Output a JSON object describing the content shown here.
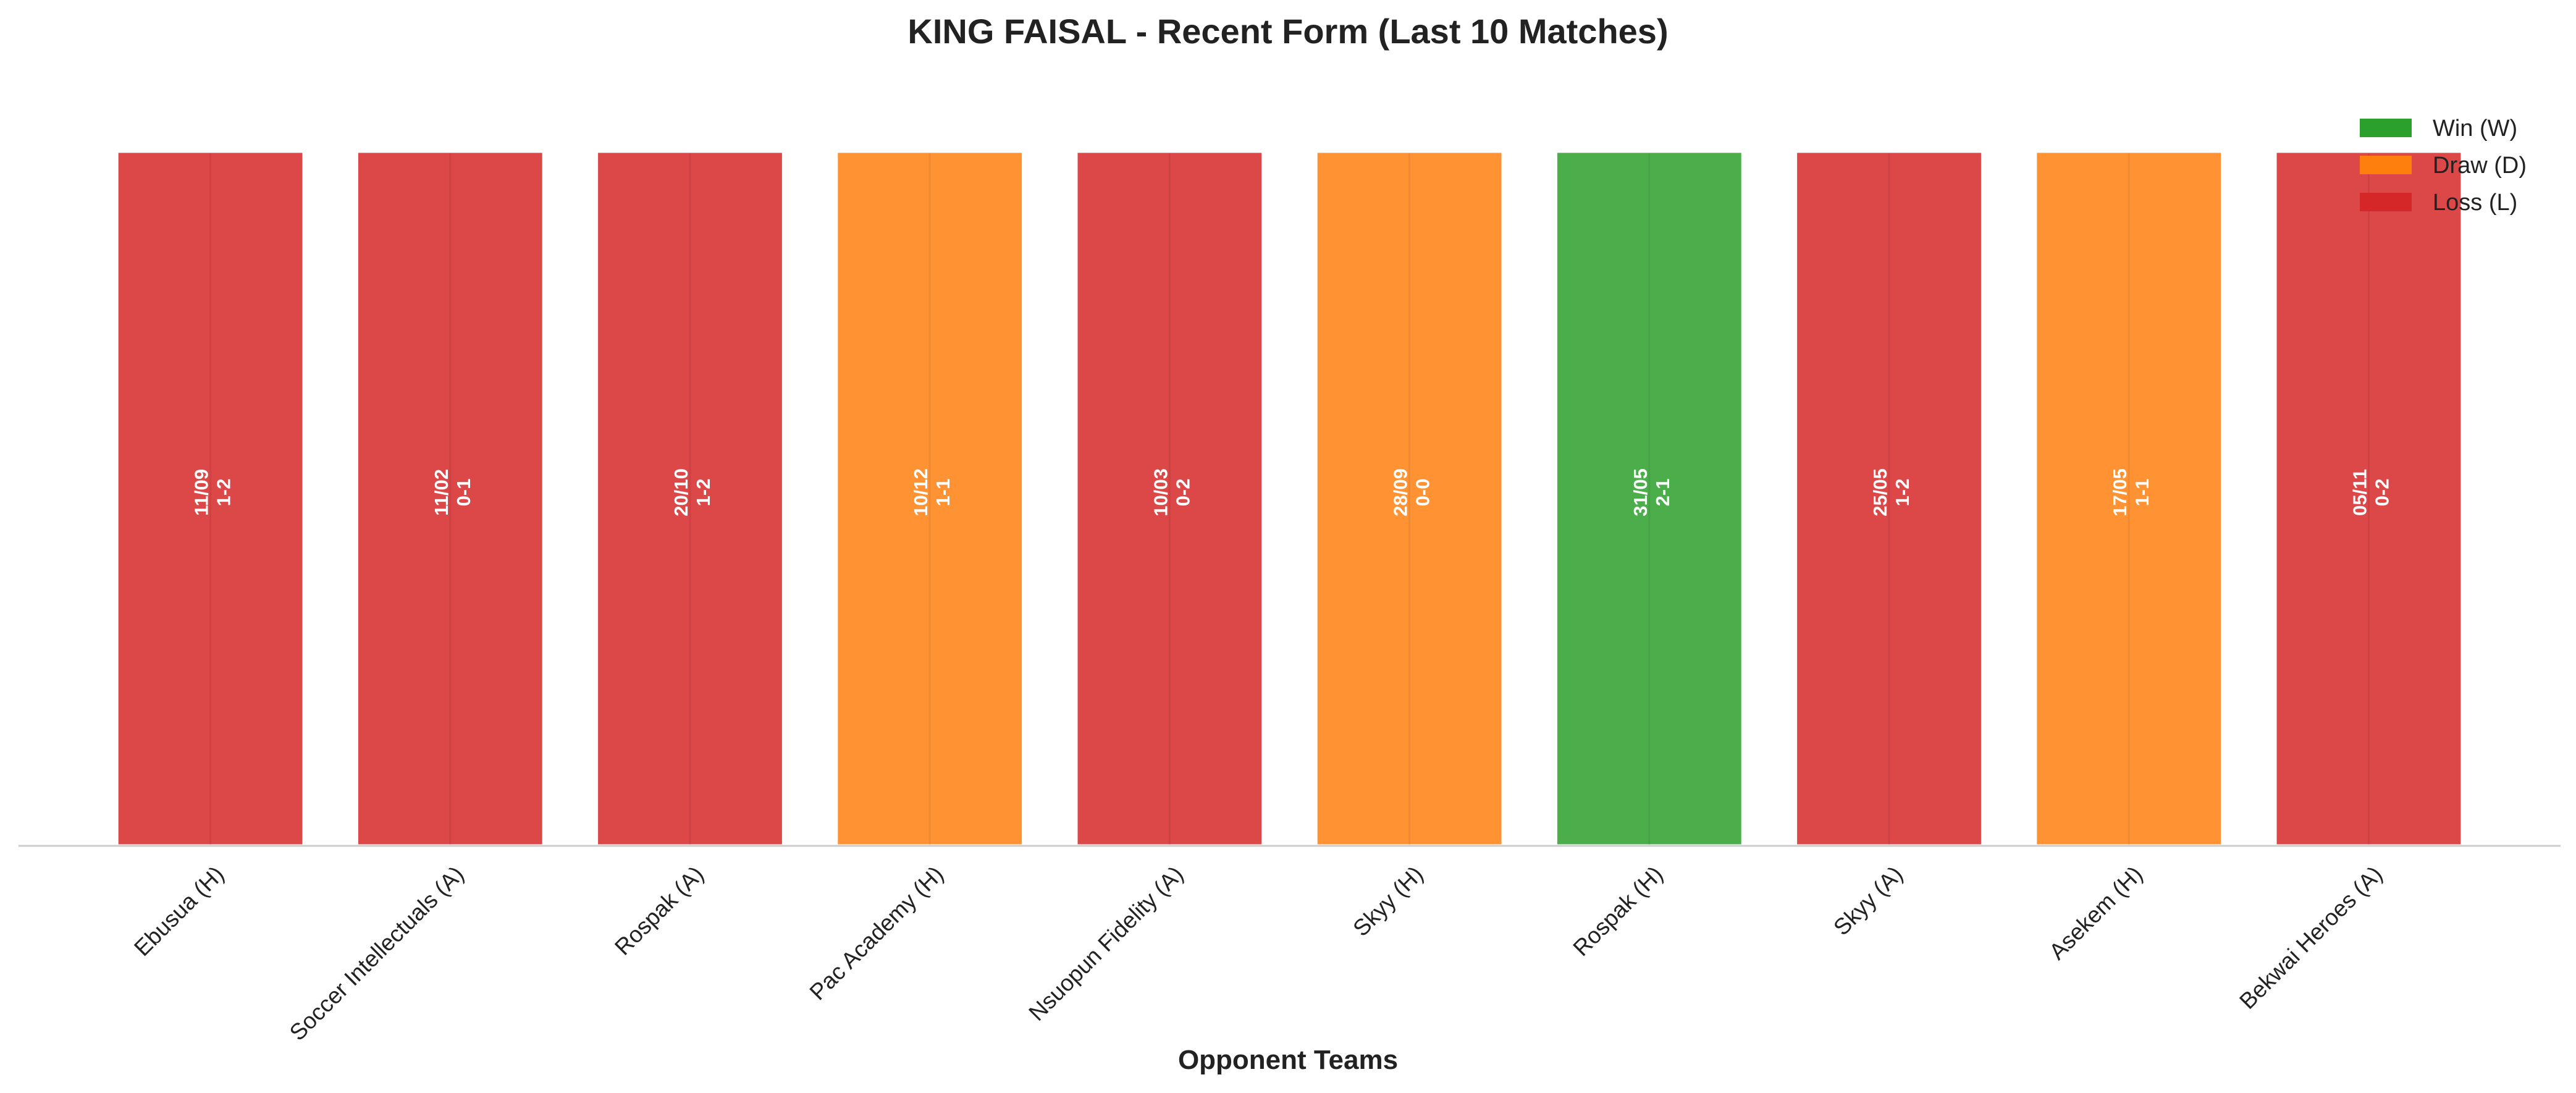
{
  "chart_data": {
    "type": "bar",
    "title": "KING FAISAL - Recent Form (Last 10 Matches)",
    "xlabel": "Opponent Teams",
    "ylabel": "",
    "grid": false,
    "legend_position": "top-right",
    "categories": [
      "Ebusua (H)",
      "Soccer Intellectuals (A)",
      "Rospak (A)",
      "Pac Academy (H)",
      "Nsuopun Fidelity (A)",
      "Skyy (H)",
      "Rospak (H)",
      "Skyy (A)",
      "Asekem (H)",
      "Bekwai Heroes (A)"
    ],
    "values": [
      1,
      1,
      1,
      1,
      1,
      1,
      1,
      1,
      1,
      1
    ],
    "ylim": [
      0,
      1.12
    ],
    "results": [
      "L",
      "L",
      "L",
      "D",
      "L",
      "D",
      "W",
      "L",
      "D",
      "L"
    ],
    "dates": [
      "11/09",
      "11/02",
      "20/10",
      "10/12",
      "10/03",
      "28/09",
      "31/05",
      "25/05",
      "17/05",
      "05/11"
    ],
    "scores": [
      "1-2",
      "0-1",
      "1-2",
      "1-1",
      "0-2",
      "0-0",
      "2-1",
      "1-2",
      "1-1",
      "0-2"
    ],
    "legend": [
      {
        "key": "W",
        "label": "Win (W)",
        "color": "#2ca02c"
      },
      {
        "key": "D",
        "label": "Draw (D)",
        "color": "#ff7f0e"
      },
      {
        "key": "L",
        "label": "Loss (L)",
        "color": "#d62728"
      }
    ]
  }
}
